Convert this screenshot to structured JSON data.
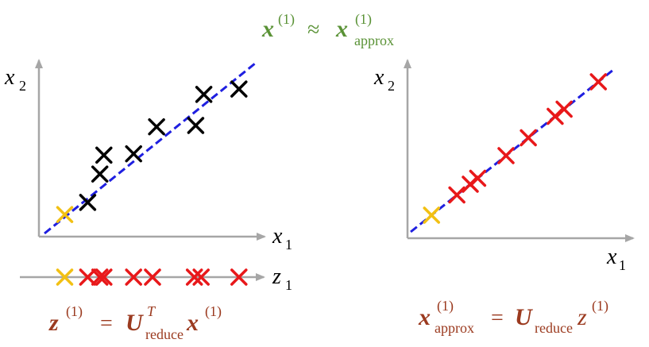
{
  "colors": {
    "axis": "#a6a6a6",
    "regression_line": "#1f1fe0",
    "point_original": "#000000",
    "point_projected": "#e8181a",
    "point_highlight": "#f2c013",
    "eq_top": "#5a9236",
    "eq_bottom": "#9b3a1f"
  },
  "top_equation": {
    "lhs_var": "x",
    "lhs_sup": "(1)",
    "relation": "≈",
    "rhs_var": "x",
    "rhs_sup": "(1)",
    "rhs_sub": "approx"
  },
  "left_plot": {
    "x_label": {
      "var": "x",
      "sub": "1"
    },
    "y_label": {
      "var": "x",
      "sub": "2"
    },
    "points": [
      {
        "x": 0.75,
        "y": 0.7,
        "kind": "highlight"
      },
      {
        "x": 1.6,
        "y": 1.15,
        "kind": "original"
      },
      {
        "x": 2.05,
        "y": 2.2,
        "kind": "original"
      },
      {
        "x": 2.2,
        "y": 2.9,
        "kind": "original"
      },
      {
        "x": 3.3,
        "y": 2.95,
        "kind": "original"
      },
      {
        "x": 4.15,
        "y": 3.95,
        "kind": "original"
      },
      {
        "x": 5.6,
        "y": 4.0,
        "kind": "original"
      },
      {
        "x": 5.9,
        "y": 5.15,
        "kind": "original"
      },
      {
        "x": 7.2,
        "y": 5.35,
        "kind": "original"
      }
    ],
    "line": {
      "x1": 0,
      "y1": 0,
      "x2": 7.8,
      "y2": 6.3
    }
  },
  "z_axis": {
    "label": {
      "var": "z",
      "sub": "1"
    },
    "points": [
      {
        "z": 0.75,
        "kind": "highlight"
      },
      {
        "z": 1.6,
        "kind": "projected"
      },
      {
        "z": 2.05,
        "kind": "projected"
      },
      {
        "z": 2.2,
        "kind": "projected"
      },
      {
        "z": 3.3,
        "kind": "projected"
      },
      {
        "z": 4.0,
        "kind": "projected"
      },
      {
        "z": 5.55,
        "kind": "projected"
      },
      {
        "z": 5.8,
        "kind": "projected"
      },
      {
        "z": 7.2,
        "kind": "projected"
      }
    ]
  },
  "right_plot": {
    "x_label": {
      "var": "x",
      "sub": "1"
    },
    "y_label": {
      "var": "x",
      "sub": "2"
    },
    "points": [
      {
        "t": 0.7,
        "kind": "highlight"
      },
      {
        "t": 1.55,
        "kind": "projected"
      },
      {
        "t": 2.0,
        "kind": "projected"
      },
      {
        "t": 2.25,
        "kind": "projected"
      },
      {
        "t": 3.2,
        "kind": "projected"
      },
      {
        "t": 3.95,
        "kind": "projected"
      },
      {
        "t": 4.85,
        "kind": "projected"
      },
      {
        "t": 5.15,
        "kind": "projected"
      },
      {
        "t": 6.3,
        "kind": "projected"
      }
    ],
    "line": {
      "t1": 0,
      "t2": 6.8
    }
  },
  "bottom_left_equation": {
    "lhs_var": "z",
    "lhs_sup": "(1)",
    "relation": "=",
    "mat_var": "U",
    "mat_sup": "T",
    "mat_sub": "reduce",
    "vec_var": "x",
    "vec_sup": "(1)"
  },
  "bottom_right_equation": {
    "lhs_var": "x",
    "lhs_sup": "(1)",
    "lhs_sub": "approx",
    "relation": "=",
    "mat_var": "U",
    "mat_sub": "reduce",
    "vec_var": "z",
    "vec_sup": "(1)"
  }
}
